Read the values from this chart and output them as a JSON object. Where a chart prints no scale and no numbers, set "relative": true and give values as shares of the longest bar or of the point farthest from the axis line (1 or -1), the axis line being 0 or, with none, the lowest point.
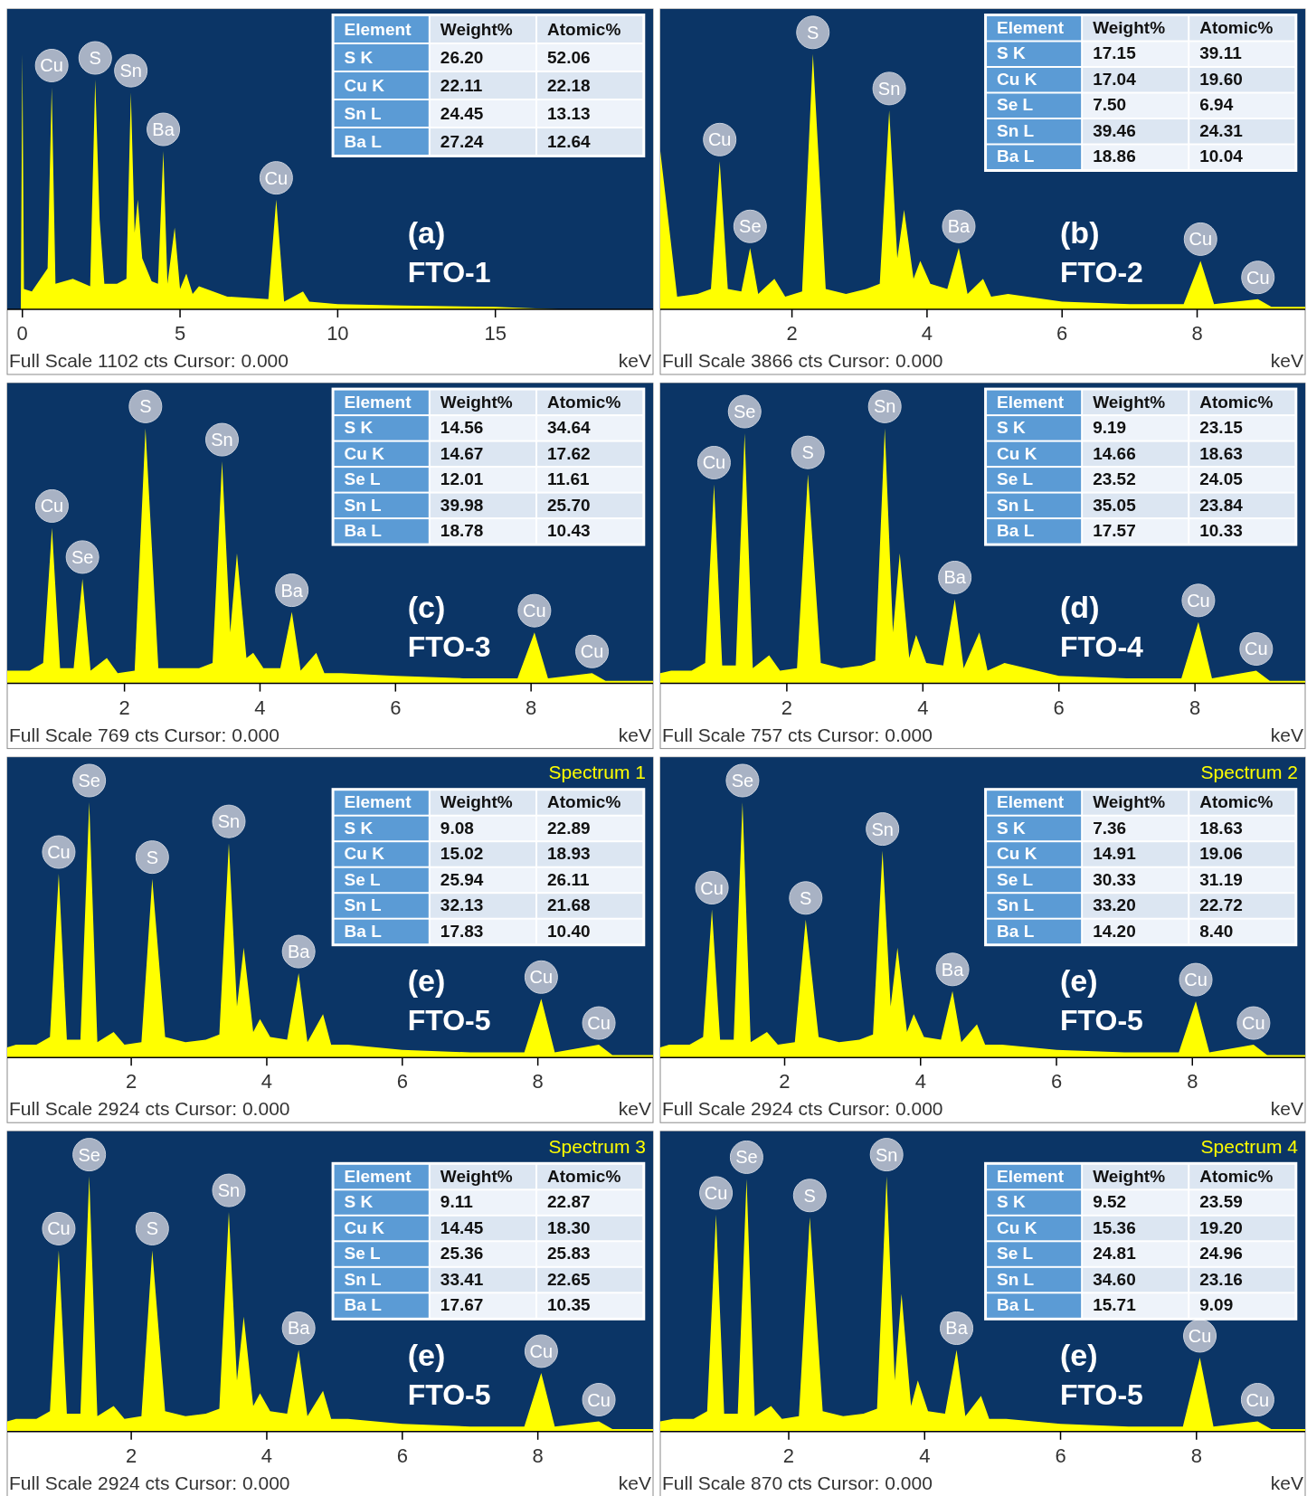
{
  "chart_data": [
    {
      "type": "area",
      "title": "(a)",
      "subtitle": "FTO-1",
      "xlabel": "keV",
      "relative": true,
      "color": "#ffff00",
      "xlim": [
        -0.48,
        20
      ],
      "xticks": [
        0,
        5,
        10,
        15
      ],
      "x": [
        -0.48,
        -0.05,
        0,
        0.05,
        0.3,
        0.8,
        0.93,
        1.05,
        1.6,
        2.15,
        2.31,
        2.45,
        2.6,
        3.0,
        3.3,
        3.44,
        3.56,
        3.66,
        3.8,
        3.9,
        4.1,
        4.3,
        4.47,
        4.6,
        4.83,
        5.0,
        5.2,
        5.4,
        5.6,
        6.5,
        7.8,
        8.05,
        8.3,
        8.9,
        9.1,
        10,
        12,
        15,
        17,
        20
      ],
      "values": [
        0,
        0,
        1,
        0.08,
        0.07,
        0.16,
        0.87,
        0.1,
        0.12,
        0.09,
        0.9,
        0.35,
        0.1,
        0.1,
        0.12,
        0.85,
        0.3,
        0.43,
        0.2,
        0.17,
        0.11,
        0.1,
        0.62,
        0.1,
        0.32,
        0.08,
        0.14,
        0.06,
        0.09,
        0.05,
        0.04,
        0.43,
        0.03,
        0.07,
        0.03,
        0.02,
        0.015,
        0.01,
        0,
        0
      ],
      "annotations": [
        "Full Scale 1102 cts Cursor: 0.000",
        {
          "text": "Cu",
          "x": 0.93,
          "y": 0.87
        },
        {
          "text": "S",
          "x": 2.31,
          "y": 0.9
        },
        {
          "text": "Sn",
          "x": 3.44,
          "y": 0.85
        },
        {
          "text": "Ba",
          "x": 4.47,
          "y": 0.62
        },
        {
          "text": "Cu",
          "x": 8.05,
          "y": 0.43
        }
      ]
    },
    {
      "type": "other",
      "annotations": [
        "Element",
        "Weight%",
        "Atomic%",
        "S K",
        "26.20",
        "52.06",
        "Cu K",
        "22.11",
        "22.18",
        "Sn L",
        "24.45",
        "13.13",
        "Ba L",
        "27.24",
        "12.64"
      ]
    },
    {
      "type": "area",
      "title": "(b)",
      "subtitle": "FTO-2",
      "xlabel": "keV",
      "relative": true,
      "color": "#ffff00",
      "xlim": [
        0.05,
        9.6
      ],
      "xticks": [
        2,
        4,
        6,
        8
      ],
      "x": [
        0.05,
        0.3,
        0.6,
        0.8,
        0.93,
        1.05,
        1.25,
        1.38,
        1.5,
        1.74,
        1.9,
        2.15,
        2.31,
        2.5,
        2.8,
        3.1,
        3.3,
        3.44,
        3.56,
        3.66,
        3.8,
        3.9,
        4.05,
        4.3,
        4.47,
        4.6,
        4.83,
        4.95,
        5.2,
        6,
        7,
        7.8,
        8.05,
        8.25,
        8.9,
        9.1,
        9.6
      ],
      "values": [
        0.62,
        0.05,
        0.06,
        0.08,
        0.58,
        0.08,
        0.07,
        0.24,
        0.06,
        0.12,
        0.05,
        0.07,
        1,
        0.08,
        0.06,
        0.08,
        0.1,
        0.78,
        0.2,
        0.39,
        0.12,
        0.19,
        0.1,
        0.08,
        0.24,
        0.06,
        0.12,
        0.05,
        0.06,
        0.03,
        0.02,
        0.02,
        0.19,
        0.02,
        0.04,
        0.01,
        0.01
      ],
      "annotations": [
        "Full Scale 3866 cts Cursor: 0.000",
        {
          "text": "Cu",
          "x": 0.93,
          "y": 0.58
        },
        {
          "text": "Se",
          "x": 1.38,
          "y": 0.24
        },
        {
          "text": "S",
          "x": 2.31,
          "y": 1
        },
        {
          "text": "Sn",
          "x": 3.44,
          "y": 0.78
        },
        {
          "text": "Ba",
          "x": 4.47,
          "y": 0.24
        },
        {
          "text": "Cu",
          "x": 8.05,
          "y": 0.19
        },
        {
          "text": "Cu",
          "x": 8.9,
          "y": 0.04
        }
      ]
    },
    {
      "type": "other",
      "annotations": [
        "Element",
        "Weight%",
        "Atomic%",
        "S K",
        "17.15",
        "39.11",
        "Cu K",
        "17.04",
        "19.60",
        "Se L",
        "7.50",
        "6.94",
        "Sn L",
        "39.46",
        "24.31",
        "Ba L",
        "18.86",
        "10.04"
      ]
    },
    {
      "type": "area",
      "title": "(c)",
      "subtitle": "FTO-3",
      "xlabel": "keV",
      "relative": true,
      "color": "#ffff00",
      "xlim": [
        0.27,
        9.8
      ],
      "xticks": [
        2,
        4,
        6,
        8
      ],
      "x": [
        0.27,
        0.3,
        0.6,
        0.8,
        0.93,
        1.05,
        1.25,
        1.38,
        1.5,
        1.74,
        1.9,
        2.15,
        2.31,
        2.5,
        2.8,
        3.1,
        3.3,
        3.44,
        3.56,
        3.66,
        3.8,
        3.9,
        4.05,
        4.3,
        4.47,
        4.6,
        4.83,
        4.95,
        5.2,
        6,
        7,
        7.8,
        8.05,
        8.25,
        8.9,
        9.1,
        9.8
      ],
      "values": [
        0.05,
        0.05,
        0.05,
        0.08,
        0.61,
        0.06,
        0.06,
        0.41,
        0.05,
        0.1,
        0.04,
        0.05,
        1,
        0.06,
        0.06,
        0.06,
        0.08,
        0.87,
        0.2,
        0.51,
        0.1,
        0.12,
        0.06,
        0.06,
        0.28,
        0.05,
        0.12,
        0.04,
        0.04,
        0.03,
        0.02,
        0.02,
        0.2,
        0.02,
        0.04,
        0.01,
        0.01
      ],
      "annotations": [
        "Full Scale 769 cts Cursor: 0.000",
        {
          "text": "Cu",
          "x": 0.93,
          "y": 0.61
        },
        {
          "text": "Se",
          "x": 1.38,
          "y": 0.41
        },
        {
          "text": "S",
          "x": 2.31,
          "y": 1
        },
        {
          "text": "Sn",
          "x": 3.44,
          "y": 0.87
        },
        {
          "text": "Ba",
          "x": 4.47,
          "y": 0.28
        },
        {
          "text": "Cu",
          "x": 8.05,
          "y": 0.2
        },
        {
          "text": "Cu",
          "x": 8.9,
          "y": 0.04
        }
      ]
    },
    {
      "type": "other",
      "annotations": [
        "Element",
        "Weight%",
        "Atomic%",
        "S K",
        "14.56",
        "34.64",
        "Cu K",
        "14.67",
        "17.62",
        "Se L",
        "12.01",
        "11.61",
        "Sn L",
        "39.98",
        "25.70",
        "Ba L",
        "18.78",
        "10.43"
      ]
    },
    {
      "type": "area",
      "title": "(d)",
      "subtitle": "FTO-4",
      "xlabel": "keV",
      "relative": true,
      "color": "#ffff00",
      "xlim": [
        0.14,
        9.62
      ],
      "xticks": [
        2,
        4,
        6,
        8
      ],
      "x": [
        0.14,
        0.3,
        0.6,
        0.8,
        0.93,
        1.05,
        1.25,
        1.38,
        1.5,
        1.74,
        1.9,
        2.15,
        2.31,
        2.5,
        2.8,
        3.1,
        3.3,
        3.44,
        3.56,
        3.66,
        3.8,
        3.9,
        4.05,
        4.3,
        4.47,
        4.6,
        4.83,
        4.95,
        5.2,
        6,
        7,
        7.8,
        8.05,
        8.25,
        8.9,
        9.1,
        9.62
      ],
      "values": [
        0.04,
        0.05,
        0.05,
        0.08,
        0.78,
        0.07,
        0.07,
        0.98,
        0.06,
        0.11,
        0.05,
        0.06,
        0.82,
        0.08,
        0.06,
        0.07,
        0.09,
        1,
        0.2,
        0.51,
        0.1,
        0.19,
        0.08,
        0.07,
        0.33,
        0.06,
        0.2,
        0.05,
        0.08,
        0.03,
        0.02,
        0.02,
        0.24,
        0.02,
        0.05,
        0.01,
        0.01
      ],
      "annotations": [
        "Full Scale 757 cts Cursor: 0.000",
        {
          "text": "Cu",
          "x": 0.93,
          "y": 0.78
        },
        {
          "text": "Se",
          "x": 1.38,
          "y": 0.98
        },
        {
          "text": "S",
          "x": 2.31,
          "y": 0.82
        },
        {
          "text": "Sn",
          "x": 3.44,
          "y": 1
        },
        {
          "text": "Ba",
          "x": 4.47,
          "y": 0.33
        },
        {
          "text": "Cu",
          "x": 8.05,
          "y": 0.24
        },
        {
          "text": "Cu",
          "x": 8.9,
          "y": 0.05
        }
      ]
    },
    {
      "type": "other",
      "annotations": [
        "Element",
        "Weight%",
        "Atomic%",
        "S K",
        "9.19",
        "23.15",
        "Cu K",
        "14.66",
        "18.63",
        "Se L",
        "23.52",
        "24.05",
        "Sn L",
        "35.05",
        "23.84",
        "Ba L",
        "17.57",
        "10.33"
      ]
    },
    {
      "type": "area",
      "title": "(e)",
      "subtitle": "FTO-5",
      "xlabel": "keV",
      "relative": true,
      "color": "#ffff00",
      "xlim": [
        0.17,
        9.7
      ],
      "xticks": [
        2,
        4,
        6,
        8
      ],
      "x": [
        0.17,
        0.3,
        0.6,
        0.8,
        0.93,
        1.05,
        1.25,
        1.38,
        1.5,
        1.74,
        1.9,
        2.15,
        2.31,
        2.5,
        2.8,
        3.1,
        3.3,
        3.44,
        3.56,
        3.66,
        3.8,
        3.9,
        4.05,
        4.3,
        4.47,
        4.6,
        4.83,
        4.95,
        5.2,
        6,
        7,
        7.8,
        8.05,
        8.25,
        8.9,
        9.1,
        9.7
      ],
      "values": [
        0.04,
        0.05,
        0.05,
        0.08,
        0.72,
        0.07,
        0.07,
        1,
        0.06,
        0.1,
        0.05,
        0.06,
        0.7,
        0.08,
        0.06,
        0.07,
        0.09,
        0.84,
        0.2,
        0.43,
        0.1,
        0.15,
        0.08,
        0.07,
        0.33,
        0.06,
        0.17,
        0.05,
        0.05,
        0.03,
        0.02,
        0.02,
        0.23,
        0.02,
        0.05,
        0.01,
        0.01
      ],
      "annotations": [
        "Full Scale 2924 cts Cursor: 0.000",
        "Spectrum 1",
        {
          "text": "Cu",
          "x": 0.93,
          "y": 0.72
        },
        {
          "text": "Se",
          "x": 1.38,
          "y": 1
        },
        {
          "text": "S",
          "x": 2.31,
          "y": 0.7
        },
        {
          "text": "Sn",
          "x": 3.44,
          "y": 0.84
        },
        {
          "text": "Ba",
          "x": 4.47,
          "y": 0.33
        },
        {
          "text": "Cu",
          "x": 8.05,
          "y": 0.23
        },
        {
          "text": "Cu",
          "x": 8.9,
          "y": 0.05
        }
      ]
    },
    {
      "type": "other",
      "annotations": [
        "Element",
        "Weight%",
        "Atomic%",
        "S K",
        "9.08",
        "22.89",
        "Cu K",
        "15.02",
        "18.93",
        "Se L",
        "25.94",
        "26.11",
        "Sn L",
        "32.13",
        "21.68",
        "Ba L",
        "17.83",
        "10.40"
      ]
    },
    {
      "type": "area",
      "title": "(e)",
      "subtitle": "FTO-5",
      "xlabel": "keV",
      "relative": true,
      "color": "#ffff00",
      "xlim": [
        0.17,
        9.66
      ],
      "xticks": [
        2,
        4,
        6,
        8
      ],
      "x": [
        0.17,
        0.3,
        0.6,
        0.8,
        0.93,
        1.05,
        1.25,
        1.38,
        1.5,
        1.74,
        1.9,
        2.15,
        2.31,
        2.5,
        2.8,
        3.1,
        3.3,
        3.44,
        3.56,
        3.66,
        3.8,
        3.9,
        4.05,
        4.3,
        4.47,
        4.6,
        4.83,
        4.95,
        5.2,
        6,
        7,
        7.8,
        8.05,
        8.25,
        8.9,
        9.1,
        9.66
      ],
      "values": [
        0.04,
        0.05,
        0.05,
        0.08,
        0.58,
        0.07,
        0.07,
        1,
        0.06,
        0.1,
        0.05,
        0.06,
        0.54,
        0.08,
        0.06,
        0.07,
        0.09,
        0.81,
        0.2,
        0.43,
        0.1,
        0.17,
        0.08,
        0.07,
        0.26,
        0.06,
        0.13,
        0.05,
        0.05,
        0.03,
        0.02,
        0.02,
        0.22,
        0.02,
        0.05,
        0.01,
        0.01
      ],
      "annotations": [
        "Full Scale 2924 cts Cursor: 0.000",
        "Spectrum 2",
        {
          "text": "Cu",
          "x": 0.93,
          "y": 0.58
        },
        {
          "text": "Se",
          "x": 1.38,
          "y": 1
        },
        {
          "text": "S",
          "x": 2.31,
          "y": 0.54
        },
        {
          "text": "Sn",
          "x": 3.44,
          "y": 0.81
        },
        {
          "text": "Ba",
          "x": 4.47,
          "y": 0.26
        },
        {
          "text": "Cu",
          "x": 8.05,
          "y": 0.22
        },
        {
          "text": "Cu",
          "x": 8.9,
          "y": 0.05
        }
      ]
    },
    {
      "type": "other",
      "annotations": [
        "Element",
        "Weight%",
        "Atomic%",
        "S K",
        "7.36",
        "18.63",
        "Cu K",
        "14.91",
        "19.06",
        "Se L",
        "30.33",
        "31.19",
        "Sn L",
        "33.20",
        "22.72",
        "Ba L",
        "14.20",
        "8.40"
      ]
    },
    {
      "type": "area",
      "title": "(e)",
      "subtitle": "FTO-5",
      "xlabel": "keV",
      "relative": true,
      "color": "#ffff00",
      "xlim": [
        0.17,
        9.7
      ],
      "xticks": [
        2,
        4,
        6,
        8
      ],
      "x": [
        0.17,
        0.3,
        0.6,
        0.8,
        0.93,
        1.05,
        1.25,
        1.38,
        1.5,
        1.74,
        1.9,
        2.15,
        2.31,
        2.5,
        2.8,
        3.1,
        3.3,
        3.44,
        3.56,
        3.66,
        3.8,
        3.9,
        4.05,
        4.3,
        4.47,
        4.6,
        4.83,
        4.95,
        5.2,
        6,
        7,
        7.8,
        8.05,
        8.25,
        8.9,
        9.1,
        9.7
      ],
      "values": [
        0.04,
        0.05,
        0.05,
        0.08,
        0.71,
        0.07,
        0.07,
        1,
        0.06,
        0.1,
        0.05,
        0.06,
        0.71,
        0.08,
        0.06,
        0.07,
        0.09,
        0.86,
        0.2,
        0.45,
        0.1,
        0.15,
        0.08,
        0.07,
        0.32,
        0.06,
        0.16,
        0.05,
        0.05,
        0.03,
        0.02,
        0.02,
        0.23,
        0.02,
        0.04,
        0.01,
        0.01
      ],
      "annotations": [
        "Full Scale 2924 cts Cursor: 0.000",
        "Spectrum 3",
        {
          "text": "Cu",
          "x": 0.93,
          "y": 0.71
        },
        {
          "text": "Se",
          "x": 1.38,
          "y": 1
        },
        {
          "text": "S",
          "x": 2.31,
          "y": 0.71
        },
        {
          "text": "Sn",
          "x": 3.44,
          "y": 0.86
        },
        {
          "text": "Ba",
          "x": 4.47,
          "y": 0.32
        },
        {
          "text": "Cu",
          "x": 8.05,
          "y": 0.23
        },
        {
          "text": "Cu",
          "x": 8.9,
          "y": 0.04
        }
      ]
    },
    {
      "type": "other",
      "annotations": [
        "Element",
        "Weight%",
        "Atomic%",
        "S K",
        "9.11",
        "22.87",
        "Cu K",
        "14.45",
        "18.30",
        "Se L",
        "25.36",
        "25.83",
        "Sn L",
        "33.41",
        "22.65",
        "Ba L",
        "17.67",
        "10.35"
      ]
    },
    {
      "type": "area",
      "title": "(e)",
      "subtitle": "FTO-5",
      "xlabel": "keV",
      "relative": true,
      "color": "#ffff00",
      "xlim": [
        0.11,
        9.6
      ],
      "xticks": [
        2,
        4,
        6,
        8
      ],
      "x": [
        0.11,
        0.3,
        0.6,
        0.8,
        0.93,
        1.05,
        1.25,
        1.38,
        1.5,
        1.74,
        1.9,
        2.15,
        2.31,
        2.5,
        2.8,
        3.1,
        3.3,
        3.44,
        3.56,
        3.66,
        3.8,
        3.9,
        4.05,
        4.3,
        4.47,
        4.6,
        4.83,
        4.95,
        5.2,
        6,
        7,
        7.8,
        8.05,
        8.25,
        8.9,
        9.1,
        9.6
      ],
      "values": [
        0.04,
        0.05,
        0.05,
        0.08,
        0.85,
        0.07,
        0.07,
        0.99,
        0.06,
        0.1,
        0.05,
        0.06,
        0.84,
        0.08,
        0.06,
        0.07,
        0.09,
        1,
        0.2,
        0.54,
        0.1,
        0.2,
        0.08,
        0.07,
        0.32,
        0.06,
        0.14,
        0.05,
        0.05,
        0.03,
        0.02,
        0.02,
        0.29,
        0.02,
        0.04,
        0.01,
        0.01
      ],
      "annotations": [
        "Full Scale 870 cts Cursor: 0.000",
        "Spectrum 4",
        {
          "text": "Cu",
          "x": 0.93,
          "y": 0.85
        },
        {
          "text": "Se",
          "x": 1.38,
          "y": 0.99
        },
        {
          "text": "S",
          "x": 2.31,
          "y": 0.84
        },
        {
          "text": "Sn",
          "x": 3.44,
          "y": 1
        },
        {
          "text": "Ba",
          "x": 4.47,
          "y": 0.32
        },
        {
          "text": "Cu",
          "x": 8.05,
          "y": 0.29
        },
        {
          "text": "Cu",
          "x": 8.9,
          "y": 0.04
        }
      ]
    },
    {
      "type": "other",
      "annotations": [
        "Element",
        "Weight%",
        "Atomic%",
        "S K",
        "9.52",
        "23.59",
        "Cu K",
        "15.36",
        "19.20",
        "Se L",
        "24.81",
        "24.96",
        "Sn L",
        "34.60",
        "23.16",
        "Ba L",
        "15.71",
        "9.09"
      ]
    }
  ]
}
